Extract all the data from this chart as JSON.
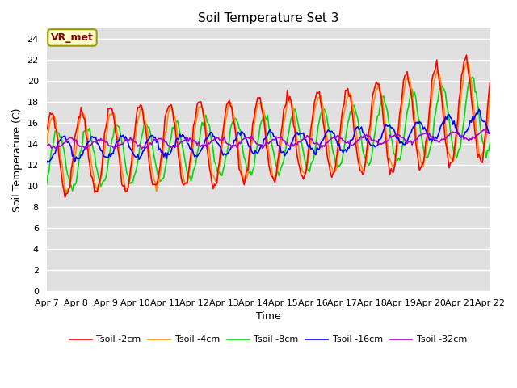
{
  "title": "Soil Temperature Set 3",
  "xlabel": "Time",
  "ylabel": "Soil Temperature (C)",
  "ylim": [
    0,
    25
  ],
  "yticks": [
    0,
    2,
    4,
    6,
    8,
    10,
    12,
    14,
    16,
    18,
    20,
    22,
    24
  ],
  "x_labels": [
    "Apr 7",
    "Apr 8",
    "Apr 9",
    "Apr 10",
    "Apr 11",
    "Apr 12",
    "Apr 13",
    "Apr 14",
    "Apr 15",
    "Apr 16",
    "Apr 17",
    "Apr 18",
    "Apr 19",
    "Apr 20",
    "Apr 21",
    "Apr 22"
  ],
  "colors": {
    "Tsoil -2cm": "#ff0000",
    "Tsoil -4cm": "#ff8c00",
    "Tsoil -8cm": "#00dd00",
    "Tsoil -16cm": "#0000ff",
    "Tsoil -32cm": "#aa00cc"
  },
  "background_color": "#e0e0e0",
  "label_box_facecolor": "#ffffcc",
  "label_box_edgecolor": "#999900",
  "label_box_text": "VR_met",
  "label_text_color": "#880000",
  "n_points": 360,
  "figsize": [
    6.4,
    4.8
  ],
  "dpi": 100
}
